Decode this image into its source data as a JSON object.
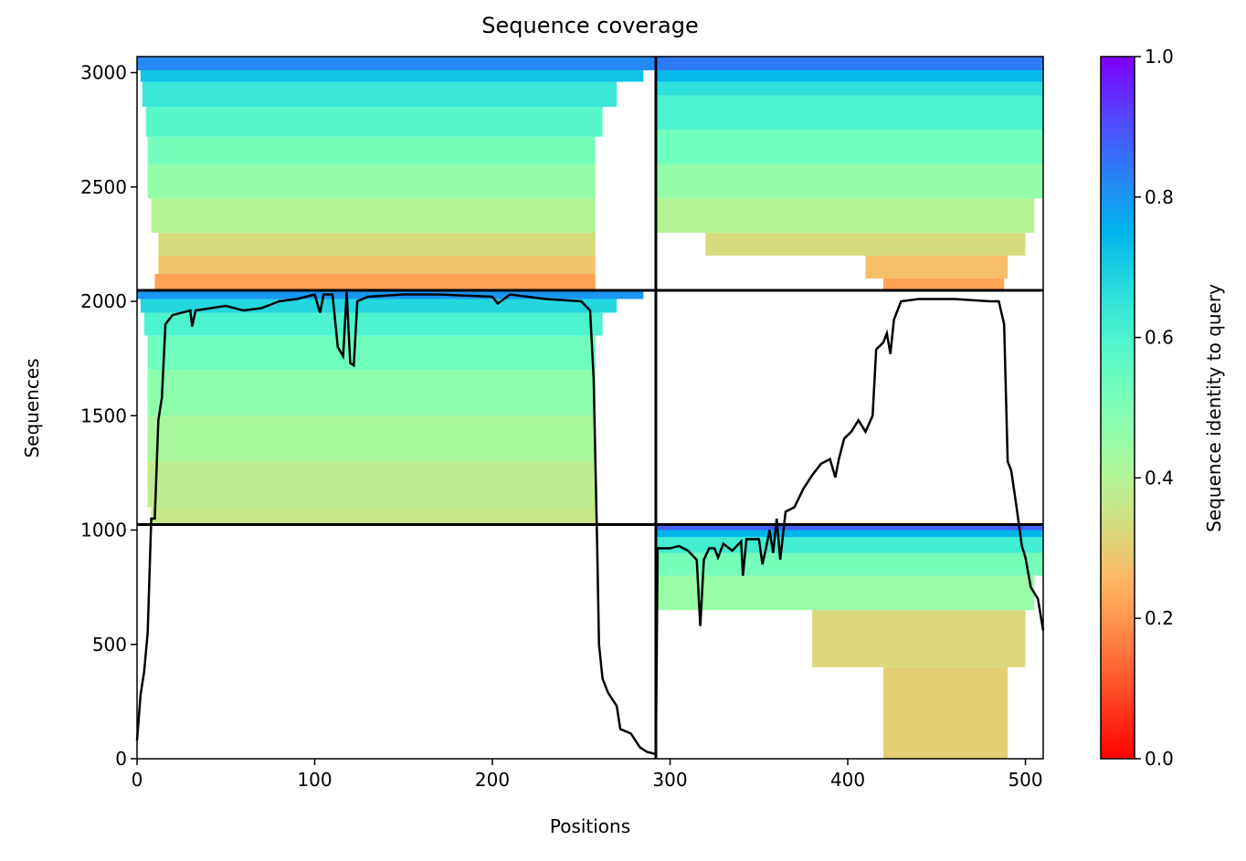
{
  "chart_data": {
    "type": "coverage",
    "title": "Sequence coverage",
    "xlabel": "Positions",
    "ylabel": "Sequences",
    "xlim": [
      0,
      510
    ],
    "ylim": [
      0,
      3070
    ],
    "xticks": [
      0,
      100,
      200,
      300,
      400,
      500
    ],
    "yticks": [
      0,
      500,
      1000,
      1500,
      2000,
      2500,
      3000
    ],
    "colormap": "rainbow_r",
    "colorbar": {
      "label": "Sequence identity to query",
      "lim": [
        0,
        1
      ],
      "ticks": [
        {
          "value": 0,
          "label": "0.0"
        },
        0.2,
        0.4,
        0.6,
        0.8,
        {
          "value": 1,
          "label": "1.0"
        }
      ]
    },
    "dividers_x": [
      292
    ],
    "dividers_y": [
      1024,
      2048
    ],
    "blocks": [
      {
        "x": [
          10,
          258
        ],
        "y": [
          2048,
          2120
        ],
        "identity": 0.22
      },
      {
        "x": [
          12,
          258
        ],
        "y": [
          2120,
          2200
        ],
        "identity": 0.28
      },
      {
        "x": [
          12,
          258
        ],
        "y": [
          2200,
          2300
        ],
        "identity": 0.33
      },
      {
        "x": [
          8,
          258
        ],
        "y": [
          2300,
          2450
        ],
        "identity": 0.4
      },
      {
        "x": [
          6,
          258
        ],
        "y": [
          2450,
          2600
        ],
        "identity": 0.46
      },
      {
        "x": [
          6,
          258
        ],
        "y": [
          2600,
          2720
        ],
        "identity": 0.52
      },
      {
        "x": [
          5,
          262
        ],
        "y": [
          2720,
          2850
        ],
        "identity": 0.58
      },
      {
        "x": [
          3,
          270
        ],
        "y": [
          2850,
          2960
        ],
        "identity": 0.64
      },
      {
        "x": [
          2,
          285
        ],
        "y": [
          2960,
          3010
        ],
        "identity": 0.72
      },
      {
        "x": [
          0,
          292
        ],
        "y": [
          3010,
          3070
        ],
        "identity": 0.82
      },
      {
        "x": [
          420,
          488
        ],
        "y": [
          2048,
          2100
        ],
        "identity": 0.22
      },
      {
        "x": [
          410,
          490
        ],
        "y": [
          2100,
          2200
        ],
        "identity": 0.27
      },
      {
        "x": [
          320,
          500
        ],
        "y": [
          2200,
          2300
        ],
        "identity": 0.33
      },
      {
        "x": [
          292,
          505
        ],
        "y": [
          2300,
          2450
        ],
        "identity": 0.4
      },
      {
        "x": [
          292,
          510
        ],
        "y": [
          2450,
          2600
        ],
        "identity": 0.46
      },
      {
        "x": [
          292,
          510
        ],
        "y": [
          2600,
          2750
        ],
        "identity": 0.53
      },
      {
        "x": [
          292,
          510
        ],
        "y": [
          2750,
          2900
        ],
        "identity": 0.6
      },
      {
        "x": [
          292,
          510
        ],
        "y": [
          2900,
          2960
        ],
        "identity": 0.66
      },
      {
        "x": [
          292,
          510
        ],
        "y": [
          2960,
          3010
        ],
        "identity": 0.74
      },
      {
        "x": [
          292,
          510
        ],
        "y": [
          3010,
          3070
        ],
        "identity": 0.84
      },
      {
        "x": [
          8,
          258
        ],
        "y": [
          1024,
          1100
        ],
        "identity": 0.36
      },
      {
        "x": [
          6,
          258
        ],
        "y": [
          1100,
          1300
        ],
        "identity": 0.38
      },
      {
        "x": [
          6,
          258
        ],
        "y": [
          1300,
          1500
        ],
        "identity": 0.42
      },
      {
        "x": [
          6,
          258
        ],
        "y": [
          1500,
          1700
        ],
        "identity": 0.47
      },
      {
        "x": [
          6,
          258
        ],
        "y": [
          1700,
          1850
        ],
        "identity": 0.53
      },
      {
        "x": [
          4,
          262
        ],
        "y": [
          1850,
          1950
        ],
        "identity": 0.6
      },
      {
        "x": [
          2,
          270
        ],
        "y": [
          1950,
          2010
        ],
        "identity": 0.68
      },
      {
        "x": [
          0,
          285
        ],
        "y": [
          2010,
          2048
        ],
        "identity": 0.8
      },
      {
        "x": [
          420,
          490
        ],
        "y": [
          0,
          400
        ],
        "identity": 0.3
      },
      {
        "x": [
          380,
          500
        ],
        "y": [
          400,
          650
        ],
        "identity": 0.32
      },
      {
        "x": [
          292,
          505
        ],
        "y": [
          650,
          800
        ],
        "identity": 0.45
      },
      {
        "x": [
          292,
          510
        ],
        "y": [
          800,
          900
        ],
        "identity": 0.52
      },
      {
        "x": [
          292,
          510
        ],
        "y": [
          900,
          970
        ],
        "identity": 0.62
      },
      {
        "x": [
          292,
          510
        ],
        "y": [
          970,
          1000
        ],
        "identity": 0.75
      },
      {
        "x": [
          292,
          510
        ],
        "y": [
          1000,
          1024
        ],
        "identity": 0.88
      }
    ],
    "series": [
      {
        "color": "#000000",
        "x": [
          0,
          2,
          4,
          6,
          8,
          10,
          12,
          14,
          16,
          20,
          30,
          31,
          33,
          50,
          60,
          70,
          80,
          90,
          100,
          103,
          105,
          110,
          113,
          116,
          118,
          120,
          122,
          124,
          130,
          150,
          170,
          200,
          203,
          210,
          230,
          250,
          255,
          257,
          259,
          260,
          262,
          265,
          270,
          272,
          278,
          283,
          287,
          292,
          293,
          300,
          305,
          310,
          315,
          317,
          319,
          322,
          325,
          327,
          330,
          335,
          340,
          341,
          343,
          350,
          352,
          354,
          356,
          358,
          360,
          362,
          365,
          370,
          375,
          380,
          385,
          390,
          393,
          395,
          398,
          402,
          406,
          410,
          414,
          416,
          420,
          422,
          424,
          426,
          430,
          440,
          460,
          480,
          485,
          488,
          490,
          492,
          495,
          498,
          500,
          503,
          507,
          510
        ],
        "values": [
          80,
          280,
          380,
          550,
          1050,
          1050,
          1480,
          1580,
          1900,
          1940,
          1960,
          1890,
          1960,
          1980,
          1960,
          1970,
          2000,
          2010,
          2030,
          1950,
          2030,
          2030,
          1800,
          1760,
          2040,
          1730,
          1720,
          2000,
          2020,
          2030,
          2030,
          2020,
          1990,
          2030,
          2010,
          2000,
          1960,
          1660,
          920,
          500,
          350,
          290,
          230,
          130,
          110,
          50,
          30,
          20,
          920,
          920,
          930,
          910,
          870,
          580,
          870,
          920,
          920,
          880,
          940,
          910,
          950,
          800,
          960,
          960,
          850,
          920,
          1000,
          900,
          1050,
          870,
          1080,
          1100,
          1180,
          1240,
          1290,
          1310,
          1230,
          1310,
          1400,
          1430,
          1480,
          1430,
          1500,
          1790,
          1820,
          1860,
          1770,
          1920,
          2000,
          2010,
          2010,
          2000,
          2000,
          1900,
          1300,
          1260,
          1100,
          930,
          880,
          750,
          700,
          560
        ]
      }
    ]
  }
}
